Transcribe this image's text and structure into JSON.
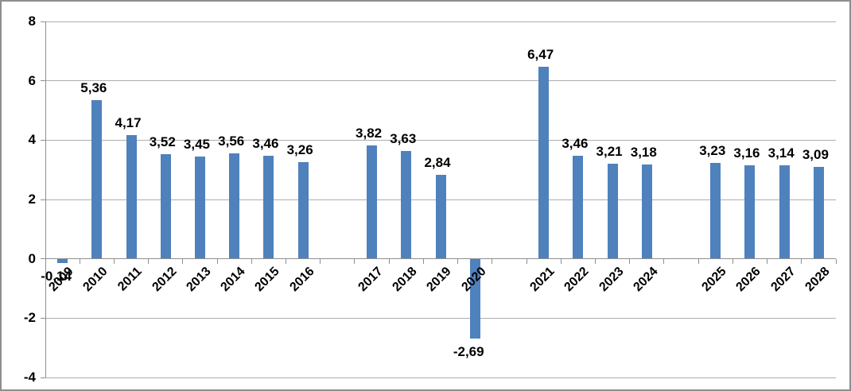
{
  "chart_data": {
    "type": "bar",
    "title": "",
    "xlabel": "",
    "ylabel": "",
    "categories": [
      "2009",
      "2010",
      "2011",
      "2012",
      "2013",
      "2014",
      "2015",
      "2016",
      "2017",
      "2018",
      "2019",
      "2020",
      "2021",
      "2022",
      "2023",
      "2024",
      "2025",
      "2026",
      "2027",
      "2028"
    ],
    "values": [
      -0.14,
      5.36,
      4.17,
      3.52,
      3.45,
      3.56,
      3.46,
      3.26,
      3.82,
      3.63,
      2.84,
      -2.69,
      6.47,
      3.46,
      3.21,
      3.18,
      3.23,
      3.16,
      3.14,
      3.09
    ],
    "value_labels": [
      "-0,14",
      "5,36",
      "4,17",
      "3,52",
      "3,45",
      "3,56",
      "3,46",
      "3,26",
      "3,82",
      "3,63",
      "2,84",
      "-2,69",
      "6,47",
      "3,46",
      "3,21",
      "3,18",
      "3,23",
      "3,16",
      "3,14",
      "3,09"
    ],
    "group_gaps_after": [
      "2016",
      "2020",
      "2024"
    ],
    "ylim": [
      -4,
      8
    ],
    "ytick_step": 2,
    "ytick_labels": [
      "8",
      "6",
      "4",
      "2",
      "0",
      "-2",
      "-4"
    ],
    "grid": "horizontal-only",
    "legend": "none",
    "bar_color": "#4F81BD",
    "gridline_color": "#adadad",
    "axis_color": "#8f8f8f"
  }
}
